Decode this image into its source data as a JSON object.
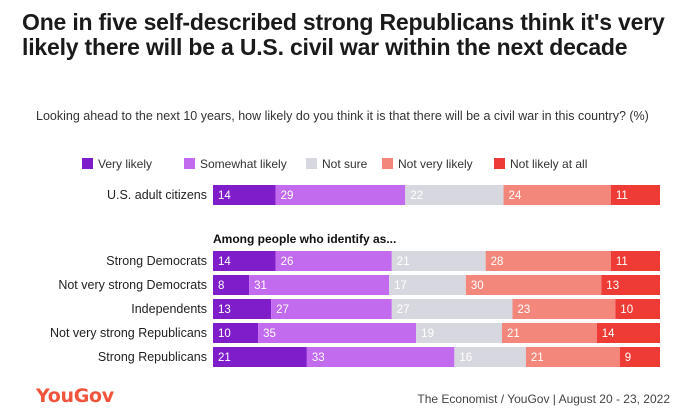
{
  "title": "One in five self-described strong Republicans think it's very likely there will be a U.S. civil war within the next decade",
  "subtitle": "Looking ahead to the next 10 years, how likely do you think it is that there will be a civil war in this country? (%)",
  "brand": "YouGov",
  "source": "The Economist / YouGov | August 20 - 23, 2022",
  "colors": {
    "very_likely": "#7e1dc9",
    "somewhat_likely": "#c26bef",
    "not_sure": "#d7d7df",
    "not_very_likely": "#f4877b",
    "not_likely_at_all": "#ee3b35"
  },
  "chart_data": {
    "type": "bar",
    "orientation": "horizontal",
    "stacked": true,
    "units": "%",
    "legend": [
      "Very likely",
      "Somewhat likely",
      "Not sure",
      "Not very likely",
      "Not likely at all"
    ],
    "group_heading": "Among people who identify as...",
    "categories": [
      "U.S. adult citizens",
      "Strong Democrats",
      "Not very strong Democrats",
      "Independents",
      "Not very strong Republicans",
      "Strong Republicans"
    ],
    "series": [
      {
        "name": "Very likely",
        "values": [
          14,
          14,
          8,
          13,
          10,
          21
        ]
      },
      {
        "name": "Somewhat likely",
        "values": [
          29,
          26,
          31,
          27,
          35,
          33
        ]
      },
      {
        "name": "Not sure",
        "values": [
          22,
          21,
          17,
          27,
          19,
          16
        ]
      },
      {
        "name": "Not very likely",
        "values": [
          24,
          28,
          30,
          23,
          21,
          21
        ]
      },
      {
        "name": "Not likely at all",
        "values": [
          11,
          11,
          13,
          10,
          14,
          9
        ]
      }
    ]
  }
}
